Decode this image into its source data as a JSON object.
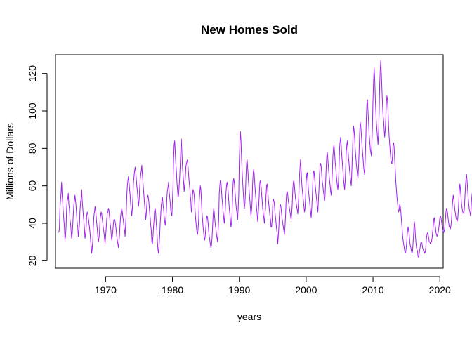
{
  "chart_data": {
    "type": "line",
    "title": "New Homes Sold",
    "xlabel": "years",
    "ylabel": "Millions of Dollars",
    "xlim": [
      1962.5,
      2020.5
    ],
    "ylim": [
      16,
      130
    ],
    "x_ticks": [
      1970,
      1980,
      1990,
      2000,
      2010,
      2020
    ],
    "y_ticks": [
      20,
      40,
      60,
      80,
      100,
      120
    ],
    "grid": false,
    "legend": "none",
    "series": [
      {
        "color": "#A020F0",
        "start": 1963.0,
        "frequency": 12,
        "values": [
          35,
          37,
          48,
          52,
          56,
          62,
          55,
          51,
          46,
          42,
          38,
          31,
          33,
          38,
          48,
          52,
          53,
          56,
          50,
          48,
          42,
          40,
          36,
          32,
          34,
          39,
          45,
          50,
          52,
          55,
          52,
          49,
          44,
          40,
          38,
          33,
          36,
          39,
          47,
          51,
          53,
          58,
          52,
          48,
          44,
          41,
          37,
          32,
          34,
          37,
          44,
          46,
          45,
          43,
          40,
          38,
          35,
          31,
          28,
          24,
          27,
          31,
          38,
          44,
          46,
          49,
          47,
          44,
          40,
          37,
          33,
          30,
          32,
          35,
          42,
          44,
          46,
          45,
          42,
          40,
          37,
          35,
          32,
          29,
          33,
          37,
          42,
          45,
          46,
          48,
          47,
          44,
          40,
          38,
          34,
          31,
          33,
          36,
          40,
          42,
          42,
          41,
          39,
          36,
          33,
          31,
          29,
          27,
          30,
          34,
          40,
          44,
          46,
          48,
          46,
          43,
          41,
          38,
          36,
          33,
          40,
          45,
          55,
          60,
          63,
          65,
          62,
          58,
          55,
          50,
          47,
          44,
          48,
          54,
          62,
          65,
          68,
          70,
          68,
          64,
          60,
          57,
          53,
          49,
          52,
          58,
          63,
          66,
          68,
          71,
          66,
          62,
          58,
          54,
          50,
          46,
          42,
          45,
          50,
          54,
          55,
          53,
          50,
          46,
          43,
          39,
          36,
          30,
          29,
          33,
          38,
          42,
          47,
          48,
          45,
          40,
          36,
          30,
          26,
          24,
          28,
          33,
          40,
          45,
          50,
          52,
          54,
          50,
          48,
          44,
          41,
          39,
          42,
          46,
          54,
          58,
          59,
          62,
          57,
          54,
          51,
          47,
          45,
          44,
          52,
          60,
          74,
          82,
          84,
          78,
          72,
          68,
          62,
          58,
          54,
          55,
          60,
          65,
          72,
          80,
          85,
          77,
          70,
          66,
          62,
          57,
          60,
          64,
          70,
          72,
          73,
          74,
          70,
          66,
          62,
          59,
          55,
          52,
          46,
          48,
          55,
          58,
          57,
          55,
          50,
          45,
          41,
          38,
          35,
          34,
          37,
          42,
          52,
          56,
          60,
          58,
          52,
          46,
          42,
          38,
          35,
          32,
          31,
          34,
          38,
          42,
          44,
          43,
          40,
          36,
          33,
          31,
          29,
          27,
          28,
          32,
          38,
          44,
          48,
          46,
          42,
          39,
          37,
          34,
          32,
          30,
          36,
          42,
          56,
          60,
          63,
          62,
          58,
          53,
          50,
          46,
          43,
          40,
          44,
          48,
          56,
          60,
          62,
          60,
          57,
          52,
          48,
          45,
          42,
          38,
          40,
          45,
          55,
          62,
          64,
          62,
          58,
          54,
          50,
          47,
          45,
          42,
          48,
          55,
          74,
          83,
          89,
          84,
          75,
          68,
          62,
          57,
          52,
          48,
          50,
          56,
          65,
          72,
          74,
          70,
          65,
          60,
          56,
          52,
          48,
          44,
          47,
          52,
          62,
          67,
          69,
          65,
          60,
          56,
          52,
          48,
          45,
          41,
          45,
          50,
          57,
          62,
          63,
          60,
          56,
          52,
          48,
          45,
          43,
          40,
          44,
          48,
          55,
          60,
          61,
          58,
          53,
          50,
          47,
          44,
          42,
          38,
          38,
          42,
          50,
          53,
          52,
          50,
          46,
          43,
          40,
          37,
          34,
          29,
          33,
          38,
          45,
          49,
          50,
          48,
          45,
          42,
          40,
          38,
          36,
          34,
          38,
          44,
          52,
          56,
          57,
          55,
          52,
          50,
          48,
          46,
          44,
          42,
          45,
          50,
          58,
          62,
          63,
          60,
          56,
          53,
          51,
          49,
          47,
          45,
          50,
          56,
          65,
          70,
          74,
          68,
          62,
          58,
          55,
          52,
          49,
          46,
          48,
          54,
          62,
          66,
          67,
          63,
          58,
          55,
          52,
          49,
          46,
          43,
          48,
          54,
          62,
          67,
          68,
          65,
          61,
          58,
          55,
          52,
          49,
          46,
          52,
          58,
          66,
          71,
          72,
          70,
          66,
          62,
          60,
          57,
          55,
          52,
          55,
          62,
          70,
          76,
          78,
          74,
          70,
          66,
          63,
          60,
          57,
          55,
          60,
          67,
          76,
          80,
          82,
          78,
          73,
          70,
          66,
          63,
          60,
          58,
          62,
          70,
          80,
          84,
          86,
          81,
          76,
          72,
          68,
          64,
          61,
          58,
          62,
          70,
          78,
          82,
          84,
          80,
          75,
          72,
          68,
          65,
          62,
          60,
          68,
          76,
          86,
          92,
          90,
          86,
          80,
          76,
          72,
          69,
          66,
          64,
          70,
          78,
          88,
          94,
          92,
          88,
          83,
          79,
          75,
          71,
          68,
          66,
          74,
          84,
          96,
          104,
          106,
          100,
          94,
          88,
          84,
          80,
          78,
          76,
          82,
          92,
          106,
          116,
          123,
          118,
          108,
          100,
          94,
          90,
          86,
          82,
          88,
          98,
          114,
          122,
          127,
          120,
          112,
          104,
          98,
          95,
          90,
          86,
          90,
          96,
          104,
          108,
          106,
          100,
          92,
          86,
          82,
          78,
          74,
          72,
          72,
          76,
          82,
          83,
          80,
          74,
          68,
          62,
          58,
          54,
          51,
          48,
          46,
          47,
          50,
          49,
          46,
          42,
          38,
          34,
          31,
          29,
          27,
          25,
          24,
          25,
          28,
          32,
          36,
          38,
          36,
          34,
          30,
          28,
          27,
          25,
          24,
          25,
          30,
          35,
          41,
          39,
          34,
          30,
          27,
          26,
          25,
          22,
          22,
          24,
          26,
          28,
          30,
          30,
          29,
          27,
          26,
          25,
          25,
          24,
          25,
          28,
          32,
          34,
          35,
          34,
          32,
          30,
          30,
          29,
          30,
          30,
          32,
          35,
          38,
          42,
          43,
          40,
          38,
          35,
          34,
          33,
          34,
          35,
          37,
          40,
          43,
          44,
          43,
          41,
          39,
          37,
          36,
          35,
          36,
          38,
          42,
          46,
          48,
          47,
          45,
          42,
          40,
          38,
          38,
          37,
          39,
          42,
          48,
          52,
          55,
          53,
          50,
          47,
          45,
          43,
          42,
          41,
          42,
          46,
          52,
          58,
          61,
          58,
          54,
          50,
          48,
          46,
          46,
          45,
          48,
          54,
          60,
          64,
          66,
          62,
          57,
          53,
          50,
          47,
          46,
          44,
          47,
          53,
          56,
          55
        ]
      }
    ]
  }
}
